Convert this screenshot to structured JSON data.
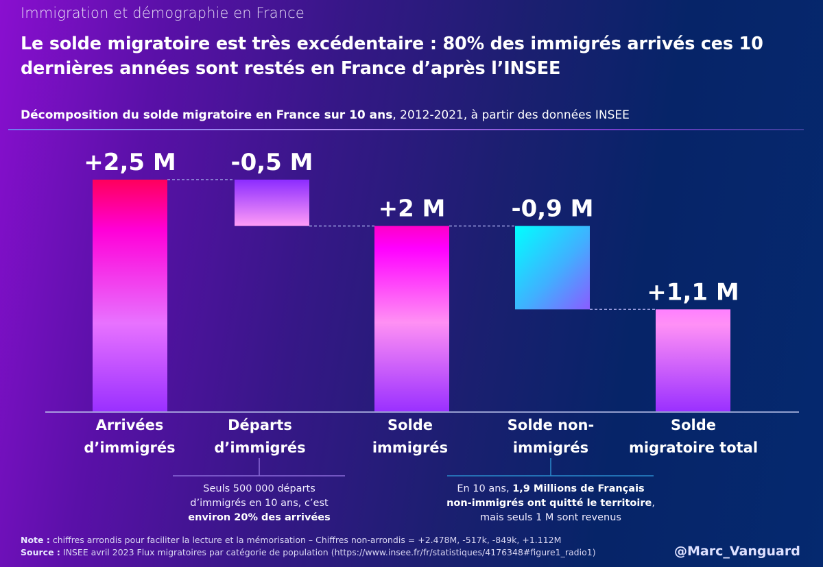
{
  "header": {
    "kicker": "Immigration et démographie en France",
    "title": "Le solde migratoire est très excédentaire : 80% des immigrés arrivés ces 10 dernières années sont restés en France d’après l’INSEE",
    "subtitle_bold": "Décomposition du solde migratoire en France sur 10 ans",
    "subtitle_rest": ", 2012-2021, à partir des données INSEE"
  },
  "chart_data": {
    "type": "bar",
    "subtype": "waterfall",
    "title": "Décomposition du solde migratoire en France sur 10 ans, 2012-2021",
    "unit": "millions",
    "categories": [
      "Arrivées d’immigrés",
      "Départs d’immigrés",
      "Solde immigrés",
      "Solde non-immigrés",
      "Solde migratoire total"
    ],
    "values": [
      2.5,
      -0.5,
      2.0,
      -0.9,
      1.1
    ],
    "kinds": [
      "total",
      "delta",
      "total",
      "delta",
      "total"
    ],
    "data_labels": [
      "+2,5 M",
      "-0,5 M",
      "+2 M",
      "-0,9 M",
      "+1,1 M"
    ],
    "unrounded_values": [
      "+2.478M",
      "-517k",
      "-849k",
      "+1.112M"
    ],
    "ylim": [
      0,
      2.5
    ],
    "grid": false,
    "legend": "none",
    "colors": {
      "arrivals": [
        "#ff0060",
        "#ff00d0",
        "#e070ff",
        "#9a30ff"
      ],
      "departures": [
        "#8c2cff",
        "#ff9cf7"
      ],
      "solde_immigres": [
        "#ff00c8",
        "#ff00ff",
        "#ff90f4",
        "#9a30ff"
      ],
      "solde_non_immigres": [
        "#00ffff",
        "#8a5cff"
      ],
      "total": [
        "#ff80ff",
        "#9a30ff"
      ]
    }
  },
  "annotations": {
    "departures": {
      "line1": "Seuls 500 000 départs",
      "line2": "d’immigrés en 10 ans, c’est",
      "line3_bold": "environ 20% des arrivées"
    },
    "non_immigres": {
      "line1_plain": "En 10 ans, ",
      "line1_bold": "1,9 Millions de Français",
      "line2_bold": "non-immigrés ont quitté le territoire",
      "line2_plain": ",",
      "line3": "mais seuls 1 M sont revenus"
    }
  },
  "footer": {
    "note_label": "Note :",
    "note_text": " chiffres arrondis pour faciliter la lecture et la mémorisation – Chiffres non-arrondis = +2.478M, -517k, -849k, +1.112M",
    "source_label": "Source :",
    "source_text": " INSEE avril 2023 Flux migratoires par catégorie de population (https://www.insee.fr/fr/statistiques/4176348#figure1_radio1)",
    "handle": "@Marc_Vanguard"
  }
}
